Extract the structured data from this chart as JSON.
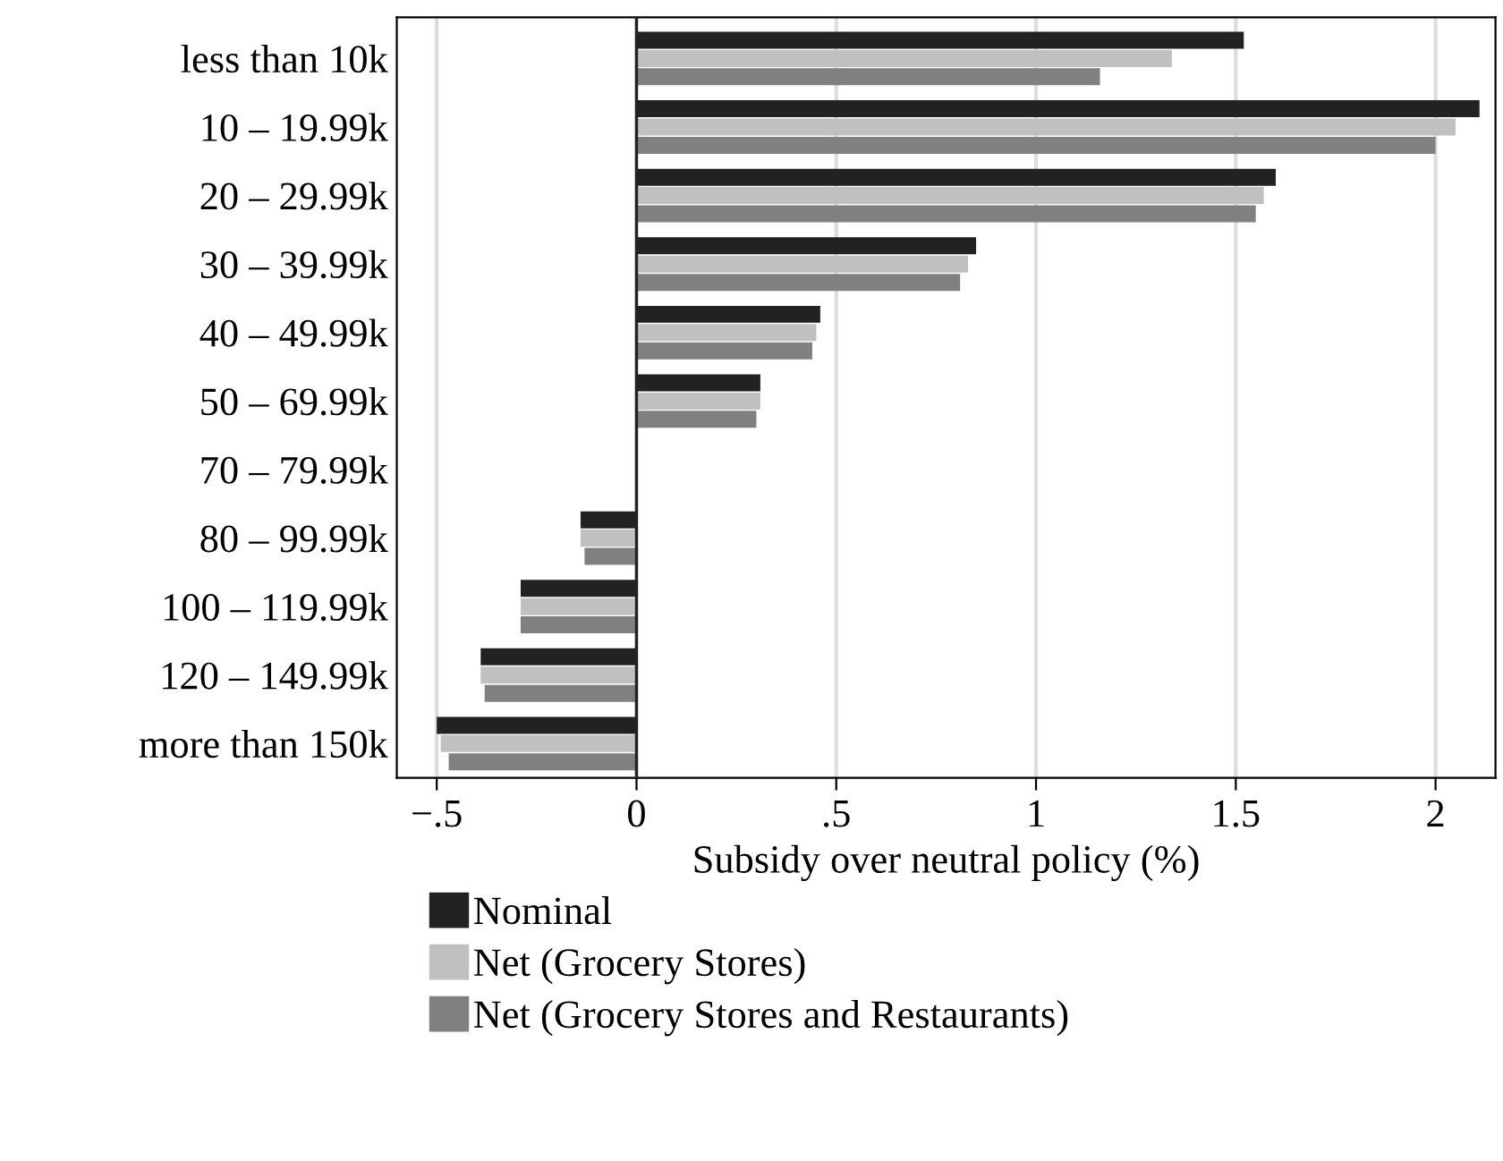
{
  "chart_data": {
    "type": "bar",
    "orientation": "horizontal",
    "xlabel": "Subsidy over neutral policy (%)",
    "categories": [
      "less than 10k",
      "10 – 19.99k",
      "20 – 29.99k",
      "30 – 39.99k",
      "40 – 49.99k",
      "50 – 69.99k",
      "70 – 79.99k",
      "80 – 99.99k",
      "100 – 119.99k",
      "120 – 149.99k",
      "more than 150k"
    ],
    "series": [
      {
        "name": "Nominal",
        "color": "#222222",
        "values": [
          1.52,
          2.11,
          1.6,
          0.85,
          0.46,
          0.31,
          null,
          -0.14,
          -0.29,
          -0.39,
          -0.5
        ]
      },
      {
        "name": "Net (Grocery Stores)",
        "color": "#c0c0c0",
        "values": [
          1.34,
          2.05,
          1.57,
          0.83,
          0.45,
          0.31,
          null,
          -0.14,
          -0.29,
          -0.39,
          -0.49
        ]
      },
      {
        "name": "Net (Grocery Stores and Restaurants)",
        "color": "#808080",
        "values": [
          1.16,
          2.0,
          1.55,
          0.81,
          0.44,
          0.3,
          null,
          -0.13,
          -0.29,
          -0.38,
          -0.47
        ]
      }
    ],
    "xlim": [
      -0.6,
      2.15
    ],
    "xticks": [
      {
        "value": -0.5,
        "label": "−.5"
      },
      0,
      {
        "value": 0.5,
        "label": ".5"
      },
      1,
      1.5,
      2
    ],
    "ref_lines": [
      {
        "axis": "x",
        "value": 0,
        "label": null,
        "color": "#222222"
      }
    ],
    "grid": "x",
    "legend": "bottom"
  }
}
